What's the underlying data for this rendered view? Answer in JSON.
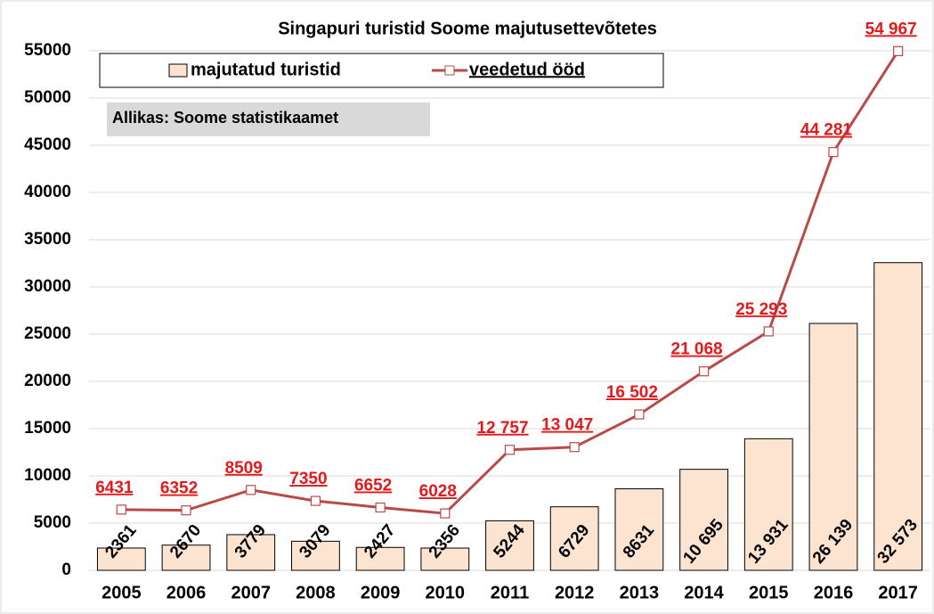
{
  "chart_data": {
    "type": "bar_line",
    "title": "Singapuri turistid Soome majutusettevõtetes",
    "annotation": "Allikas: Soome statistikaamet",
    "categories": [
      "2005",
      "2006",
      "2007",
      "2008",
      "2009",
      "2010",
      "2011",
      "2012",
      "2013",
      "2014",
      "2015",
      "2016",
      "2017"
    ],
    "series": [
      {
        "name": "majutatud turistid",
        "type": "bar",
        "color": "#fce4d0",
        "values": [
          2361,
          2670,
          3779,
          3079,
          2427,
          2356,
          5244,
          6729,
          8631,
          10695,
          13931,
          26139,
          32573
        ],
        "value_labels": [
          "2361",
          "2670",
          "3779",
          "3079",
          "2427",
          "2356",
          "5244",
          "6729",
          "8631",
          "10 695",
          "13 931",
          "26 139",
          "32 573"
        ]
      },
      {
        "name": "veedetud ööd",
        "type": "line",
        "color": "#b94a48",
        "values": [
          6431,
          6352,
          8509,
          7350,
          6652,
          6028,
          12757,
          13047,
          16502,
          21068,
          25293,
          44281,
          54967
        ],
        "value_labels": [
          "6431",
          "6352",
          "8509",
          "7350",
          "6652",
          "6028",
          "12 757",
          "13 047",
          "16 502",
          "21 068",
          "25 293",
          "44 281",
          "54 967"
        ]
      }
    ],
    "ylim": [
      0,
      55000
    ],
    "yticks": [
      0,
      5000,
      10000,
      15000,
      20000,
      25000,
      30000,
      35000,
      40000,
      45000,
      50000,
      55000
    ],
    "grid": true
  }
}
